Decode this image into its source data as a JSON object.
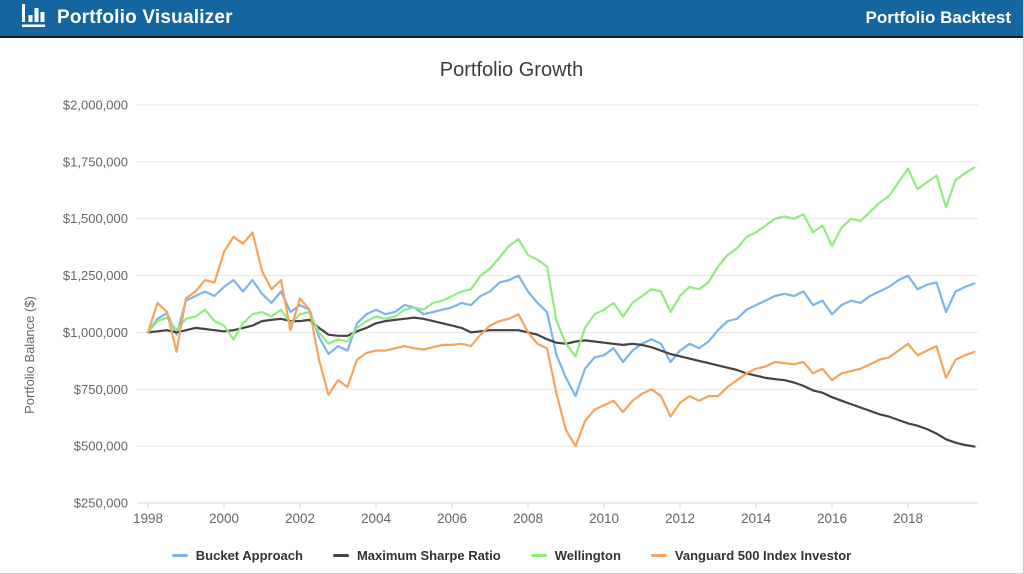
{
  "header": {
    "app_title": "Portfolio Visualizer",
    "page_title": "Portfolio Backtest",
    "logo_icon": "bar-chart-icon",
    "background_color": "#15669E"
  },
  "colors": {
    "axis_line": "#ccd6eb",
    "gridline": "#e6e6e6",
    "axis_text": "#666666",
    "title_text": "#3c3c3c",
    "legend_text": "#333333"
  },
  "chart_data": {
    "type": "line",
    "title": "Portfolio Growth",
    "xlabel": "",
    "ylabel": "Portfolio Balance ($)",
    "ylim": [
      250000,
      2000000
    ],
    "xlim": [
      1997.8,
      2019.85
    ],
    "grid": "horizontal-only",
    "legend_position": "bottom",
    "ytick_values": [
      250000,
      500000,
      750000,
      1000000,
      1250000,
      1500000,
      1750000,
      2000000
    ],
    "ytick_labels": [
      "$250,000",
      "$500,000",
      "$750,000",
      "$1,000,000",
      "$1,250,000",
      "$1,500,000",
      "$1,750,000",
      "$2,000,000"
    ],
    "xtick_values": [
      1998,
      2000,
      2002,
      2004,
      2006,
      2008,
      2010,
      2012,
      2014,
      2016,
      2018
    ],
    "xtick_labels": [
      "1998",
      "2000",
      "2002",
      "2004",
      "2006",
      "2008",
      "2010",
      "2012",
      "2014",
      "2016",
      "2018"
    ],
    "x": [
      1998,
      1998.25,
      1998.5,
      1998.75,
      1999,
      1999.25,
      1999.5,
      1999.75,
      2000,
      2000.25,
      2000.5,
      2000.75,
      2001,
      2001.25,
      2001.5,
      2001.75,
      2002,
      2002.25,
      2002.5,
      2002.75,
      2003,
      2003.25,
      2003.5,
      2003.75,
      2004,
      2004.25,
      2004.5,
      2004.75,
      2005,
      2005.25,
      2005.5,
      2005.75,
      2006,
      2006.25,
      2006.5,
      2006.75,
      2007,
      2007.25,
      2007.5,
      2007.75,
      2008,
      2008.25,
      2008.5,
      2008.75,
      2009,
      2009.25,
      2009.5,
      2009.75,
      2010,
      2010.25,
      2010.5,
      2010.75,
      2011,
      2011.25,
      2011.5,
      2011.75,
      2012,
      2012.25,
      2012.5,
      2012.75,
      2013,
      2013.25,
      2013.5,
      2013.75,
      2014,
      2014.25,
      2014.5,
      2014.75,
      2015,
      2015.25,
      2015.5,
      2015.75,
      2016,
      2016.25,
      2016.5,
      2016.75,
      2017,
      2017.25,
      2017.5,
      2017.75,
      2018,
      2018.25,
      2018.5,
      2018.75,
      2019,
      2019.25,
      2019.5,
      2019.75
    ],
    "series": [
      {
        "name": "Bucket Approach",
        "color": "#7cb5ec",
        "values": [
          1000000,
          1060000,
          1085000,
          990000,
          1140000,
          1160000,
          1180000,
          1160000,
          1200000,
          1230000,
          1180000,
          1230000,
          1170000,
          1130000,
          1180000,
          1090000,
          1120000,
          1100000,
          980000,
          905000,
          940000,
          920000,
          1040000,
          1080000,
          1100000,
          1080000,
          1090000,
          1120000,
          1110000,
          1080000,
          1090000,
          1100000,
          1110000,
          1130000,
          1120000,
          1160000,
          1180000,
          1220000,
          1230000,
          1250000,
          1180000,
          1130000,
          1090000,
          900000,
          800000,
          720000,
          840000,
          890000,
          900000,
          930000,
          870000,
          920000,
          950000,
          970000,
          950000,
          870000,
          920000,
          950000,
          930000,
          960000,
          1010000,
          1050000,
          1060000,
          1100000,
          1120000,
          1140000,
          1160000,
          1170000,
          1160000,
          1180000,
          1120000,
          1140000,
          1080000,
          1120000,
          1140000,
          1130000,
          1160000,
          1180000,
          1200000,
          1230000,
          1250000,
          1190000,
          1210000,
          1220000,
          1090000,
          1180000,
          1200000,
          1215000
        ]
      },
      {
        "name": "Maximum Sharpe Ratio",
        "color": "#434348",
        "values": [
          1000000,
          1005000,
          1010000,
          1000000,
          1010000,
          1020000,
          1015000,
          1010000,
          1005000,
          1010000,
          1020000,
          1030000,
          1050000,
          1055000,
          1060000,
          1050000,
          1050000,
          1055000,
          1020000,
          990000,
          985000,
          985000,
          1005000,
          1020000,
          1040000,
          1050000,
          1055000,
          1060000,
          1065000,
          1060000,
          1050000,
          1040000,
          1030000,
          1020000,
          1000000,
          1005000,
          1010000,
          1010000,
          1010000,
          1010000,
          1000000,
          990000,
          970000,
          955000,
          950000,
          960000,
          965000,
          960000,
          955000,
          950000,
          945000,
          950000,
          945000,
          935000,
          920000,
          905000,
          895000,
          885000,
          875000,
          865000,
          855000,
          845000,
          835000,
          820000,
          810000,
          800000,
          795000,
          790000,
          780000,
          765000,
          745000,
          735000,
          715000,
          700000,
          685000,
          670000,
          655000,
          640000,
          630000,
          615000,
          600000,
          590000,
          575000,
          555000,
          530000,
          515000,
          505000,
          498000
        ]
      },
      {
        "name": "Wellington",
        "color": "#90ed7d",
        "values": [
          1000000,
          1050000,
          1065000,
          1010000,
          1060000,
          1070000,
          1100000,
          1050000,
          1030000,
          970000,
          1040000,
          1080000,
          1090000,
          1070000,
          1100000,
          1040000,
          1080000,
          1090000,
          1000000,
          950000,
          970000,
          960000,
          1020000,
          1050000,
          1070000,
          1060000,
          1070000,
          1100000,
          1110000,
          1100000,
          1130000,
          1140000,
          1160000,
          1180000,
          1190000,
          1250000,
          1280000,
          1330000,
          1380000,
          1410000,
          1340000,
          1320000,
          1290000,
          1050000,
          950000,
          895000,
          1020000,
          1080000,
          1100000,
          1130000,
          1070000,
          1130000,
          1160000,
          1190000,
          1180000,
          1090000,
          1160000,
          1200000,
          1190000,
          1220000,
          1290000,
          1340000,
          1370000,
          1420000,
          1440000,
          1470000,
          1500000,
          1510000,
          1500000,
          1520000,
          1440000,
          1470000,
          1380000,
          1460000,
          1500000,
          1490000,
          1530000,
          1570000,
          1600000,
          1660000,
          1720000,
          1630000,
          1660000,
          1690000,
          1550000,
          1670000,
          1700000,
          1725000
        ]
      },
      {
        "name": "Vanguard 500 Index Investor",
        "color": "#f7a35c",
        "values": [
          1000000,
          1130000,
          1090000,
          915000,
          1150000,
          1180000,
          1230000,
          1220000,
          1355000,
          1420000,
          1390000,
          1440000,
          1270000,
          1190000,
          1230000,
          1010000,
          1150000,
          1100000,
          880000,
          725000,
          790000,
          760000,
          880000,
          910000,
          920000,
          920000,
          930000,
          940000,
          930000,
          925000,
          935000,
          945000,
          945000,
          950000,
          940000,
          990000,
          1030000,
          1050000,
          1060000,
          1080000,
          1000000,
          950000,
          930000,
          730000,
          570000,
          500000,
          610000,
          660000,
          680000,
          700000,
          650000,
          700000,
          730000,
          750000,
          720000,
          630000,
          690000,
          720000,
          700000,
          720000,
          720000,
          760000,
          790000,
          820000,
          840000,
          850000,
          870000,
          865000,
          860000,
          870000,
          820000,
          840000,
          790000,
          820000,
          830000,
          840000,
          860000,
          880000,
          890000,
          920000,
          950000,
          900000,
          920000,
          940000,
          800000,
          880000,
          900000,
          915000
        ]
      }
    ]
  }
}
